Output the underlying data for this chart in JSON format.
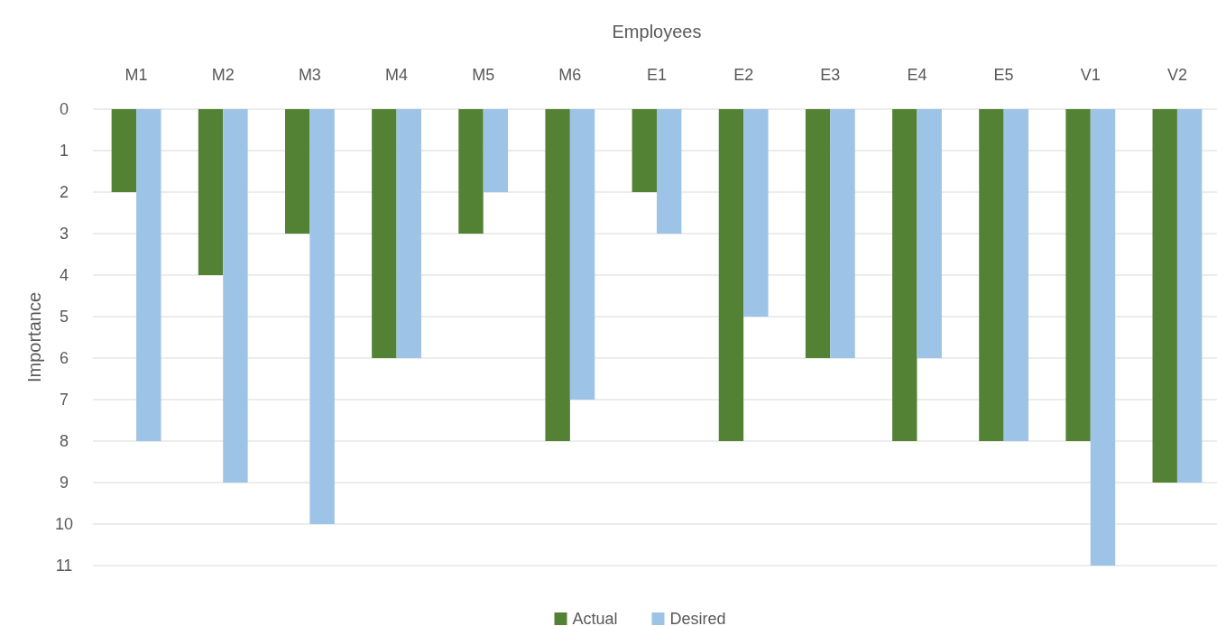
{
  "chart_data": {
    "type": "bar",
    "xlabel": "Employees",
    "ylabel": "Importance",
    "categories": [
      "M1",
      "M2",
      "M3",
      "M4",
      "M5",
      "M6",
      "E1",
      "E2",
      "E3",
      "E4",
      "E5",
      "V1",
      "V2"
    ],
    "series": [
      {
        "name": "Actual",
        "color": "#548235",
        "values": [
          2,
          4,
          3,
          6,
          3,
          8,
          2,
          8,
          6,
          8,
          8,
          8,
          9
        ]
      },
      {
        "name": "Desired",
        "color": "#9dc3e6",
        "values": [
          8,
          9,
          10,
          6,
          2,
          7,
          3,
          5,
          6,
          6,
          8,
          11,
          9
        ]
      }
    ],
    "ylim": [
      11,
      0
    ],
    "yticks": [
      0,
      1,
      2,
      3,
      4,
      5,
      6,
      7,
      8,
      9,
      10,
      11
    ],
    "grid": "y",
    "legend": "bottom"
  }
}
